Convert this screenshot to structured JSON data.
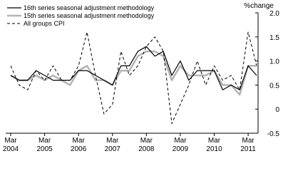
{
  "chart_data": {
    "type": "line",
    "y_label": "%change",
    "categories": [
      "Mar 2004",
      null,
      null,
      null,
      "Mar 2005",
      null,
      null,
      null,
      "Mar 2006",
      null,
      null,
      null,
      "Mar 2007",
      null,
      null,
      null,
      "Mar 2008",
      null,
      null,
      null,
      "Mar 2009",
      null,
      null,
      null,
      "Mar 2010",
      null,
      null,
      null,
      "Mar 2011",
      null
    ],
    "series": [
      {
        "name": "16th series seasonal adjustment methodology",
        "color": "#000000",
        "style": "solid",
        "values": [
          0.7,
          0.6,
          0.6,
          0.8,
          0.7,
          0.6,
          0.6,
          0.6,
          0.8,
          0.8,
          0.7,
          0.6,
          0.5,
          0.9,
          0.9,
          1.2,
          1.3,
          1.1,
          1.2,
          0.7,
          1.0,
          0.6,
          0.8,
          0.8,
          0.8,
          0.4,
          0.5,
          0.4,
          0.9,
          0.7
        ]
      },
      {
        "name": "15th series seasonal adjustment methodology",
        "color": "#b4b4b4",
        "style": "thick",
        "values": [
          0.7,
          0.6,
          0.6,
          0.7,
          0.6,
          0.7,
          0.6,
          0.5,
          0.8,
          0.9,
          0.6,
          0.6,
          0.5,
          0.8,
          0.8,
          1.1,
          1.2,
          1.2,
          1.1,
          0.6,
          0.9,
          0.7,
          0.7,
          0.7,
          0.8,
          0.5,
          0.5,
          0.3,
          0.9,
          0.9
        ]
      },
      {
        "name": "All groups CPI",
        "color": "#000000",
        "style": "dashed",
        "values": [
          0.9,
          0.5,
          0.4,
          0.8,
          0.6,
          0.9,
          0.6,
          0.6,
          0.9,
          1.6,
          0.7,
          -0.1,
          0.1,
          1.2,
          0.7,
          0.9,
          1.3,
          1.5,
          1.2,
          -0.3,
          0.1,
          0.5,
          1.0,
          0.5,
          0.9,
          0.6,
          0.7,
          0.4,
          1.6,
          0.9
        ]
      }
    ],
    "ylim": [
      -0.5,
      2
    ],
    "yticks": [
      {
        "value": 2,
        "label": "2.0"
      },
      1.5,
      {
        "value": 1,
        "label": "1.0"
      },
      0.5,
      0,
      -0.5
    ],
    "legend": "top-left"
  }
}
